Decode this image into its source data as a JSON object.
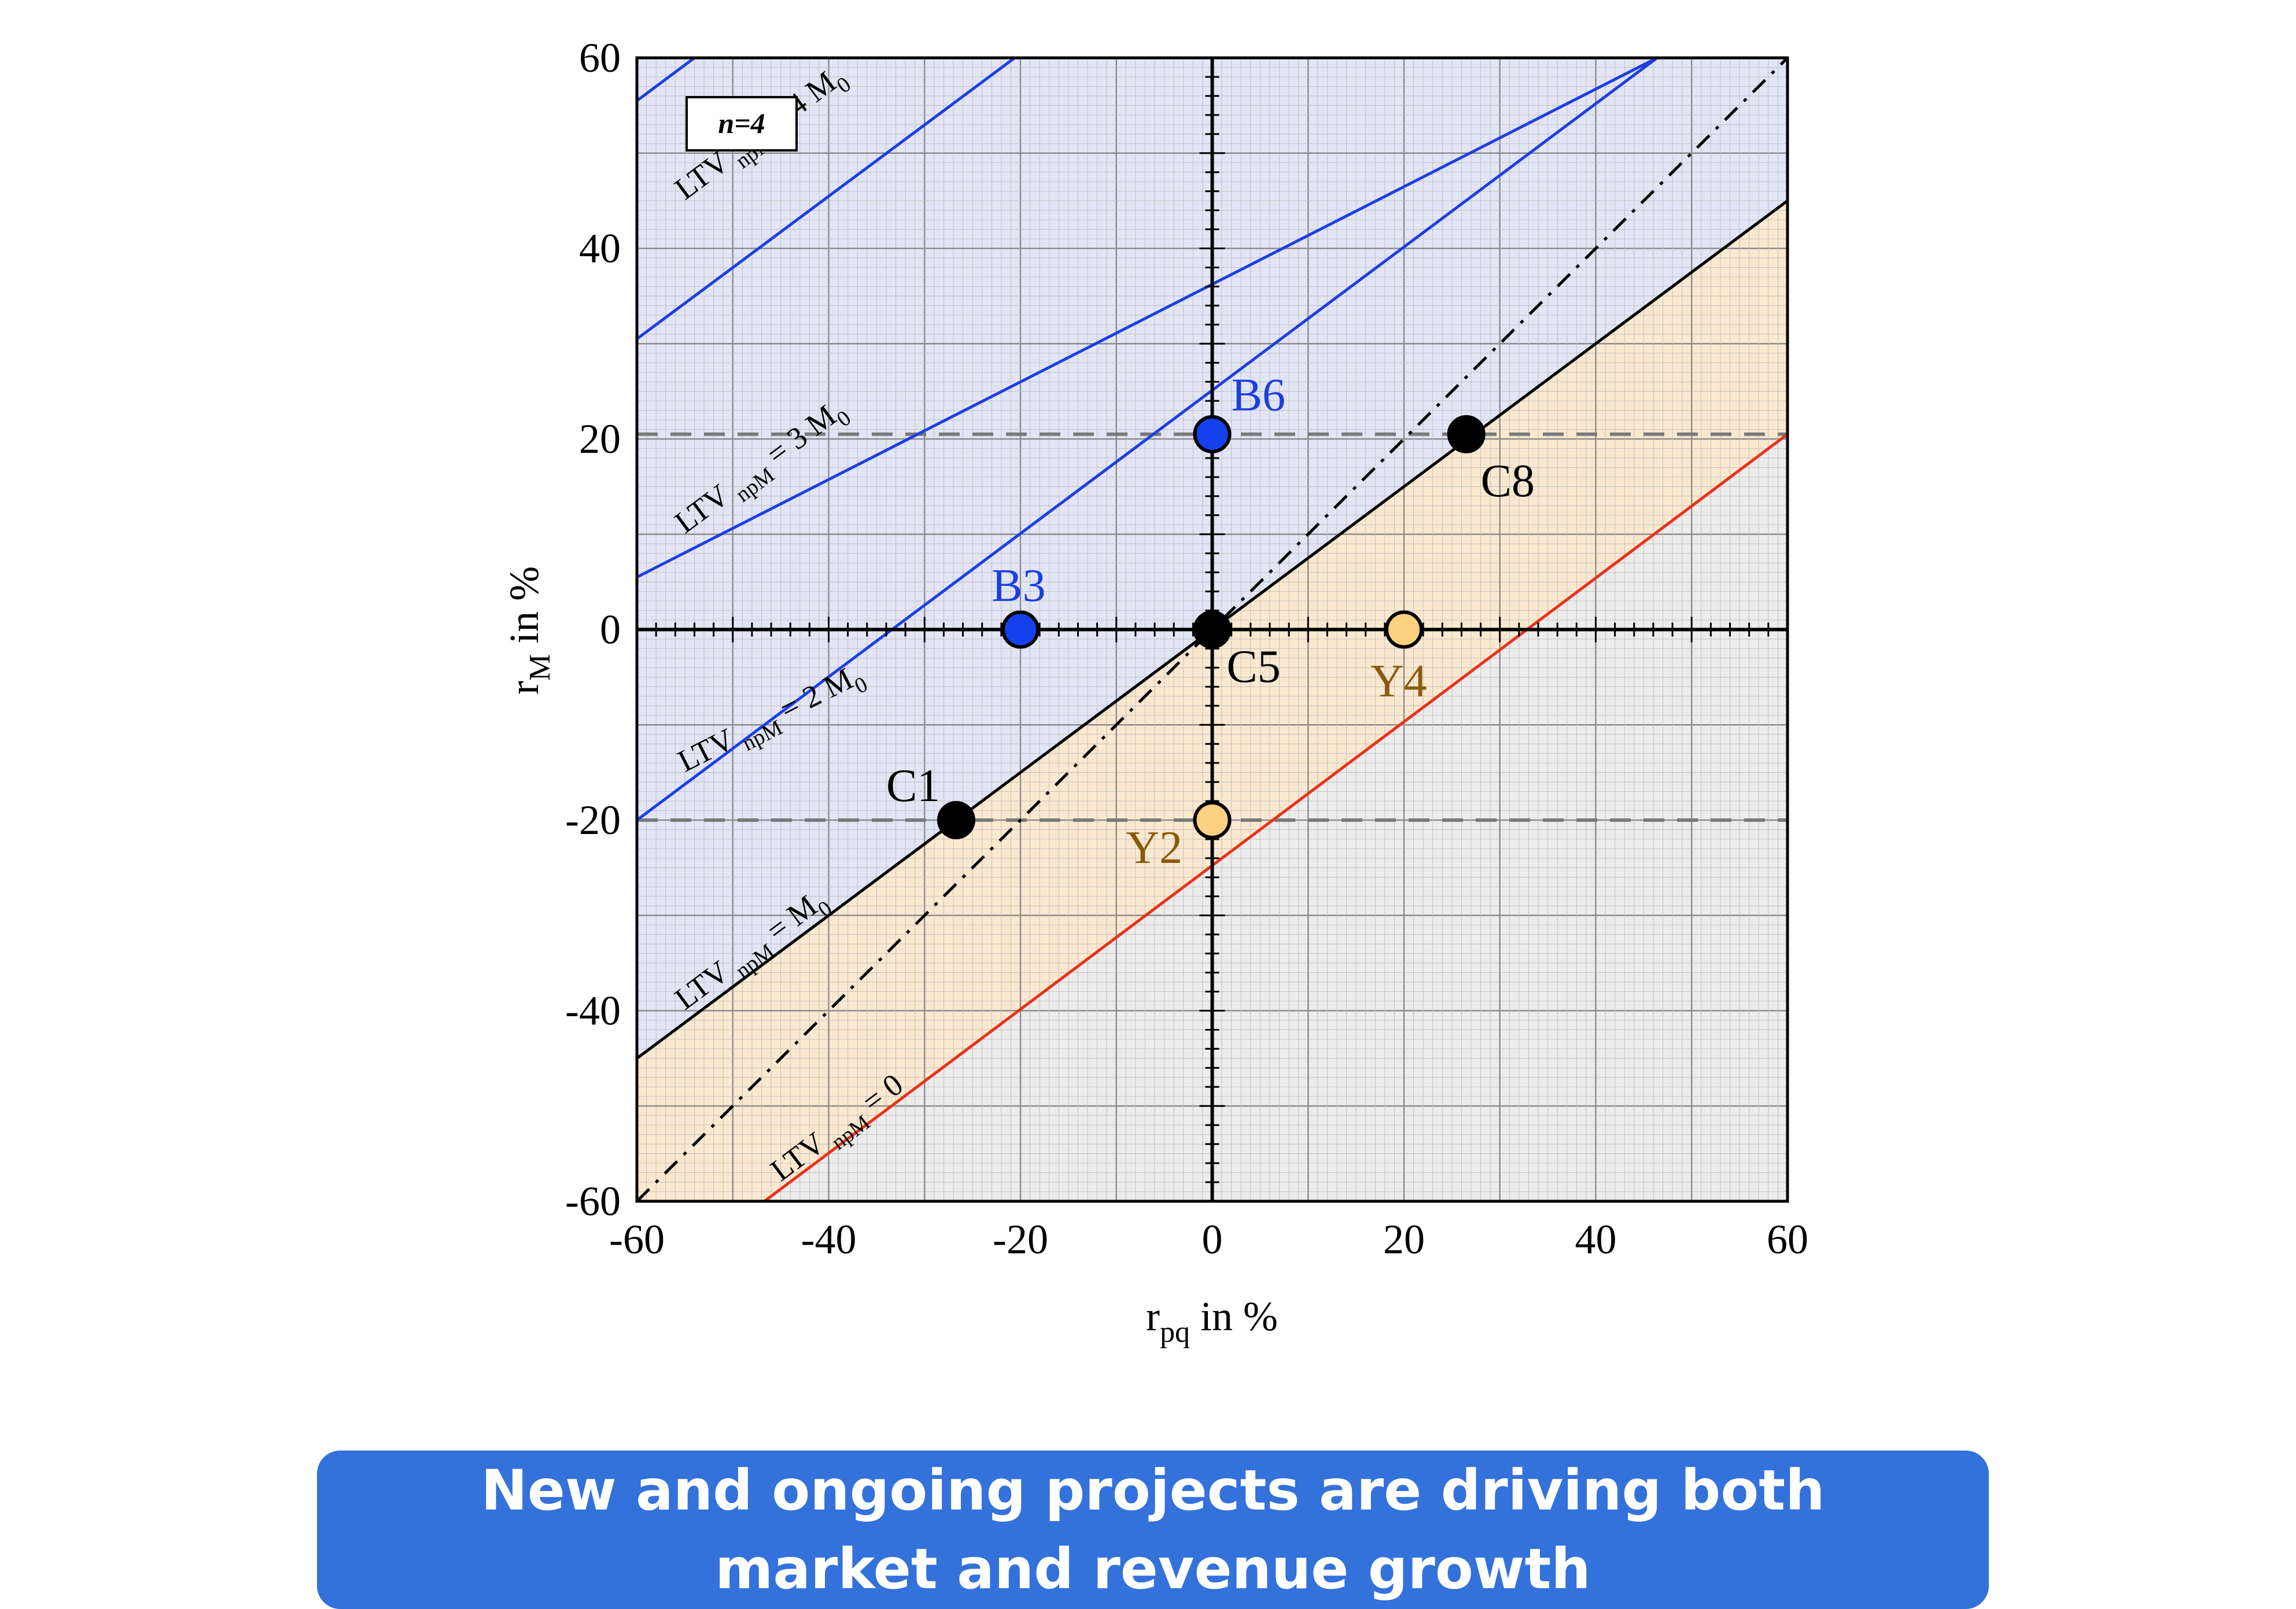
{
  "chart_data": {
    "type": "scatter",
    "xlabel": {
      "main": "r",
      "sub": "pq",
      "suffix": " in %"
    },
    "ylabel": {
      "main": "r",
      "sub": "M",
      "suffix": " in %"
    },
    "xlim": [
      -60,
      60
    ],
    "ylim": [
      -60,
      60
    ],
    "x_ticks": [
      -60,
      -40,
      -20,
      0,
      20,
      40,
      60
    ],
    "y_ticks": [
      -60,
      -40,
      -20,
      0,
      20,
      40,
      60
    ],
    "grid": true,
    "annotation_box": "n=4",
    "regions": [
      {
        "name": "blue-region",
        "color": "#e2e5f6",
        "description_polygon": [
          [
            -60,
            60
          ],
          [
            60,
            60
          ],
          [
            60,
            45
          ],
          [
            -60,
            -45
          ]
        ]
      },
      {
        "name": "orange-region",
        "color": "#fbe9cf",
        "description_polygon": [
          [
            -60,
            -45
          ],
          [
            60,
            45
          ],
          [
            60,
            20.5
          ],
          [
            -46.7,
            -60
          ],
          [
            -60,
            -60
          ]
        ]
      },
      {
        "name": "gray-region",
        "color": "#ececec",
        "description_polygon": [
          [
            -46.7,
            -60
          ],
          [
            60,
            20.5
          ],
          [
            60,
            -60
          ]
        ]
      }
    ],
    "horizontal_dashed_lines": [
      20.5,
      -20
    ],
    "lines": [
      {
        "name": "ltv-4m0",
        "color": "#1f3fe0",
        "p1": [
          -60,
          55.5
        ],
        "p2": [
          -54,
          60
        ],
        "label_main": "LTV",
        "label_sub": "npM",
        "label_rest": " = 4 M",
        "label_sub2": "0",
        "label_x": -55,
        "label_y": 45
      },
      {
        "name": "ltv-3m0",
        "color": "#1f3fe0",
        "p1": [
          -60,
          30.5
        ],
        "p2": [
          -20.6,
          60
        ],
        "label_main": "LTV",
        "label_sub": "npM",
        "label_rest": " = 3 M",
        "label_sub2": "0",
        "label_x": -55,
        "label_y": 10
      },
      {
        "name": "ltv-2m0",
        "color": "#1f3fe0",
        "p1": [
          -60,
          5.5
        ],
        "p2": [
          46.4,
          60
        ],
        "label_main": "LTV",
        "label_sub": "npM",
        "label_rest": " = 2 M",
        "label_sub2": "0",
        "label_x": -55,
        "label_y": -15
      },
      {
        "name": "ltv-mid",
        "color": "#1f3fe0",
        "p1": [
          -60,
          -20
        ],
        "p2": [
          46.4,
          60
        ],
        "label_main": "",
        "label_sub": "",
        "label_rest": "",
        "label_sub2": "",
        "label_x": 0,
        "label_y": 0
      },
      {
        "name": "ltv-m0",
        "color": "#000000",
        "p1": [
          -60,
          -45
        ],
        "p2": [
          60,
          45
        ],
        "label_main": "LTV",
        "label_sub": "npM",
        "label_rest": " = M",
        "label_sub2": "0",
        "label_x": -55,
        "label_y": -40
      },
      {
        "name": "ltv-0",
        "color": "#e8321e",
        "p1": [
          -46.7,
          -60
        ],
        "p2": [
          60,
          20.5
        ],
        "label_main": "LTV",
        "label_sub": "npM",
        "label_rest": " = 0",
        "label_sub2": "",
        "label_x": -45,
        "label_y": -58
      }
    ],
    "diagonal_dashdot": {
      "p1": [
        -60,
        -60
      ],
      "p2": [
        60,
        60
      ]
    },
    "points": [
      {
        "label": "B6",
        "x": 0,
        "y": 20.5,
        "fill": "#1440ee",
        "text_color": "#1a3fe0",
        "lx": 2,
        "ly": 23
      },
      {
        "label": "B3",
        "x": -20,
        "y": 0,
        "fill": "#1440ee",
        "text_color": "#1a3fe0",
        "lx": -23,
        "ly": 3
      },
      {
        "label": "C8",
        "x": 26.5,
        "y": 20.5,
        "fill": "#000000",
        "text_color": "#000000",
        "lx": 28,
        "ly": 14
      },
      {
        "label": "C5",
        "x": 0,
        "y": 0,
        "fill": "#000000",
        "text_color": "#000000",
        "lx": 1.5,
        "ly": -5.5
      },
      {
        "label": "C1",
        "x": -26.7,
        "y": -20,
        "fill": "#000000",
        "text_color": "#000000",
        "lx": -34,
        "ly": -18
      },
      {
        "label": "Y4",
        "x": 20,
        "y": 0,
        "fill": "#fbd07f",
        "text_color": "#8a5a0a",
        "lx": 16.5,
        "ly": -7
      },
      {
        "label": "Y2",
        "x": 0,
        "y": -20,
        "fill": "#fbd07f",
        "text_color": "#8a5a0a",
        "lx": -9,
        "ly": -24.5
      }
    ]
  },
  "banner": {
    "text": "New and ongoing projects are driving both market and revenue growth"
  }
}
